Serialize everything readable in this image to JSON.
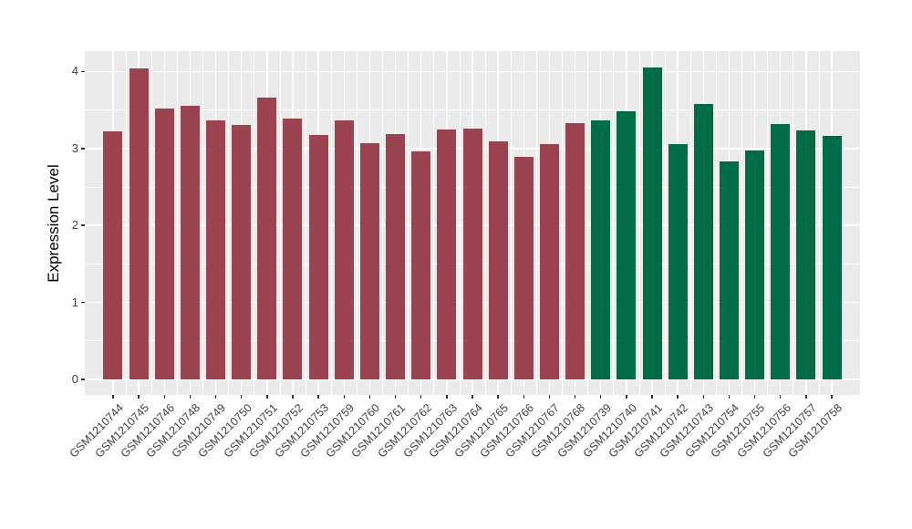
{
  "figure": {
    "background": "#FFFFFF",
    "panel_background": "#EBEBEB",
    "grid_color": "#FFFFFF",
    "axis_text_color": "#404040",
    "axis_title_color": "#000000",
    "tick_color": "#333333"
  },
  "chart_data": {
    "type": "bar",
    "title": "",
    "xlabel": "",
    "ylabel": "Expression Level",
    "ylim": [
      0,
      4.25
    ],
    "yticks": [
      0,
      1,
      2,
      3,
      4
    ],
    "legend_position": "none",
    "grid": "white major gridlines at integers and category centers, white minor gridlines at halves and between categories, on gray panel",
    "x_label_rotation_deg": 45,
    "groups": [
      {
        "name": "maroon-group",
        "color": "#9B4350"
      },
      {
        "name": "green-group",
        "color": "#006B47"
      }
    ],
    "categories": [
      "GSM1210744",
      "GSM1210745",
      "GSM1210746",
      "GSM1210748",
      "GSM1210749",
      "GSM1210750",
      "GSM1210751",
      "GSM1210752",
      "GSM1210753",
      "GSM1210759",
      "GSM1210760",
      "GSM1210761",
      "GSM1210762",
      "GSM1210763",
      "GSM1210764",
      "GSM1210765",
      "GSM1210766",
      "GSM1210767",
      "GSM1210768",
      "GSM1210739",
      "GSM1210740",
      "GSM1210741",
      "GSM1210742",
      "GSM1210743",
      "GSM1210754",
      "GSM1210755",
      "GSM1210756",
      "GSM1210757",
      "GSM1210758"
    ],
    "values": [
      3.22,
      4.04,
      3.52,
      3.55,
      3.37,
      3.31,
      3.66,
      3.39,
      3.17,
      3.36,
      3.07,
      3.19,
      2.96,
      3.25,
      3.26,
      3.09,
      2.89,
      3.06,
      3.33,
      3.37,
      3.48,
      4.05,
      3.06,
      3.58,
      2.83,
      2.97,
      3.32,
      3.24,
      3.16
    ],
    "group_index": [
      0,
      0,
      0,
      0,
      0,
      0,
      0,
      0,
      0,
      0,
      0,
      0,
      0,
      0,
      0,
      0,
      0,
      0,
      0,
      1,
      1,
      1,
      1,
      1,
      1,
      1,
      1,
      1,
      1
    ]
  }
}
